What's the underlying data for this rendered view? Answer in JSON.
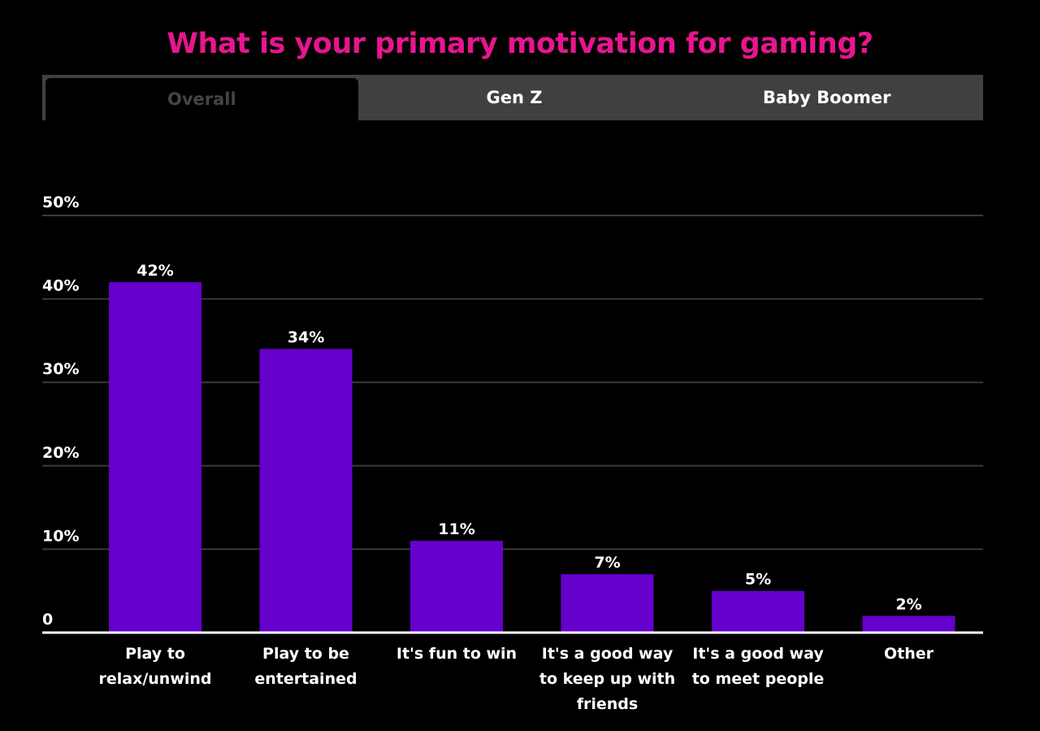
{
  "title": "What is your primary motivation for gaming?",
  "tabs": [
    {
      "label": "Overall",
      "active": true
    },
    {
      "label": "Gen Z",
      "active": false
    },
    {
      "label": "Baby Boomer",
      "active": false
    }
  ],
  "colors": {
    "title": "#e8158f",
    "bar": "#6600cc",
    "tab_bar": "#404040"
  },
  "chart_data": {
    "type": "bar",
    "title": "What is your primary motivation for gaming?",
    "categories": [
      [
        "Play to",
        "relax/unwind"
      ],
      [
        "Play to be",
        "entertained"
      ],
      [
        "It's fun to win"
      ],
      [
        "It's a good way",
        "to keep up with",
        "friends"
      ],
      [
        "It's a good way",
        "to meet people"
      ],
      [
        "Other"
      ]
    ],
    "values": [
      42,
      34,
      11,
      7,
      5,
      2
    ],
    "data_labels": [
      "42%",
      "34%",
      "11%",
      "7%",
      "5%",
      "2%"
    ],
    "ylim": [
      0,
      50
    ],
    "yticks": [
      0,
      10,
      20,
      30,
      40,
      50
    ],
    "ytick_labels": [
      "0",
      "10%",
      "20%",
      "30%",
      "40%",
      "50%"
    ],
    "grid": true
  }
}
